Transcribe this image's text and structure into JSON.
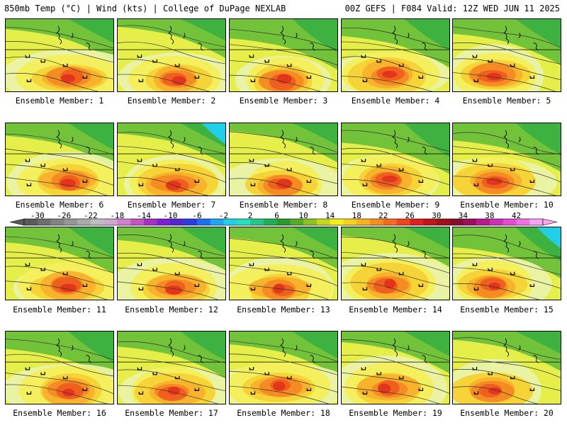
{
  "header": {
    "left_title": "850mb Temp (°C) | Wind (kts) | College of DuPage NEXLAB",
    "right_title": "00Z GEFS | F084 Valid: 12Z WED JUN 11 2025"
  },
  "panel_labels": [
    "Ensemble Member: 1",
    "Ensemble Member: 2",
    "Ensemble Member: 3",
    "Ensemble Member: 4",
    "Ensemble Member: 5",
    "Ensemble Member: 6",
    "Ensemble Member: 7",
    "Ensemble Member: 8",
    "Ensemble Member: 9",
    "Ensemble Member: 10",
    "Ensemble Member: 11",
    "Ensemble Member: 12",
    "Ensemble Member: 13",
    "Ensemble Member: 14",
    "Ensemble Member: 15",
    "Ensemble Member: 16",
    "Ensemble Member: 17",
    "Ensemble Member: 18",
    "Ensemble Member: 19",
    "Ensemble Member: 20"
  ],
  "colorbar": {
    "tick_labels": [
      "-30",
      "-26",
      "-22",
      "-18",
      "-14",
      "-10",
      "-6",
      "-2",
      "2",
      "6",
      "10",
      "14",
      "18",
      "22",
      "26",
      "30",
      "34",
      "38",
      "42"
    ],
    "swatches": [
      "#5a5a5a",
      "#6e6e6e",
      "#828282",
      "#969696",
      "#aaaaaa",
      "#bebebe",
      "#cfa8cf",
      "#d17fd1",
      "#c356c3",
      "#a431c4",
      "#7d1fd3",
      "#5524d6",
      "#2a3de0",
      "#1e6ff0",
      "#1fa6f2",
      "#22cfe8",
      "#27e0c0",
      "#22c98a",
      "#1fb255",
      "#2a9a2a",
      "#56ad24",
      "#8fc11f",
      "#c7d81c",
      "#f2ef1a",
      "#f8d21a",
      "#f9b21b",
      "#f98f1c",
      "#f86a1e",
      "#f2431f",
      "#de2120",
      "#c01518",
      "#9e0f16",
      "#8a0a2c",
      "#9b0f5c",
      "#b61c8a",
      "#cf2fb4",
      "#e54ad4",
      "#f36fe8",
      "#f7a4f2"
    ]
  }
}
